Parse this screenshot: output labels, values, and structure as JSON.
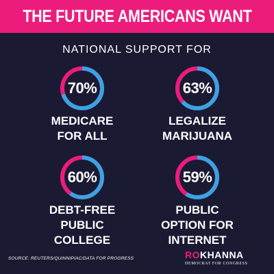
{
  "header": {
    "title": "THE FUTURE AMERICANS WANT",
    "subtitle": "NATIONAL SUPPORT FOR"
  },
  "stats": [
    {
      "percent": 70,
      "percent_label": "70%",
      "label_lines": [
        "MEDICARE",
        "FOR ALL"
      ]
    },
    {
      "percent": 63,
      "percent_label": "63%",
      "label_lines": [
        "LEGALIZE",
        "MARIJUANA"
      ]
    },
    {
      "percent": 60,
      "percent_label": "60%",
      "label_lines": [
        "DEBT-FREE",
        "PUBLIC",
        "COLLEGE"
      ]
    },
    {
      "percent": 59,
      "percent_label": "59%",
      "label_lines": [
        "PUBLIC",
        "OPTION FOR",
        "INTERNET"
      ]
    }
  ],
  "footer": {
    "source": "SOURCE: REUTERS/QUINNIPIAC/DATA FOR PROGRESS",
    "logo_part1": "RO",
    "logo_part2": "KHANNA",
    "logo_tagline": "DEMOCRAT FOR CONGRESS"
  },
  "colors": {
    "background": "#1b1a33",
    "accent_pink": "#ec1c7c",
    "ring_blue": "#3aa3e3",
    "text": "#ffffff"
  },
  "icons": [
    "donut-ring-icon"
  ]
}
